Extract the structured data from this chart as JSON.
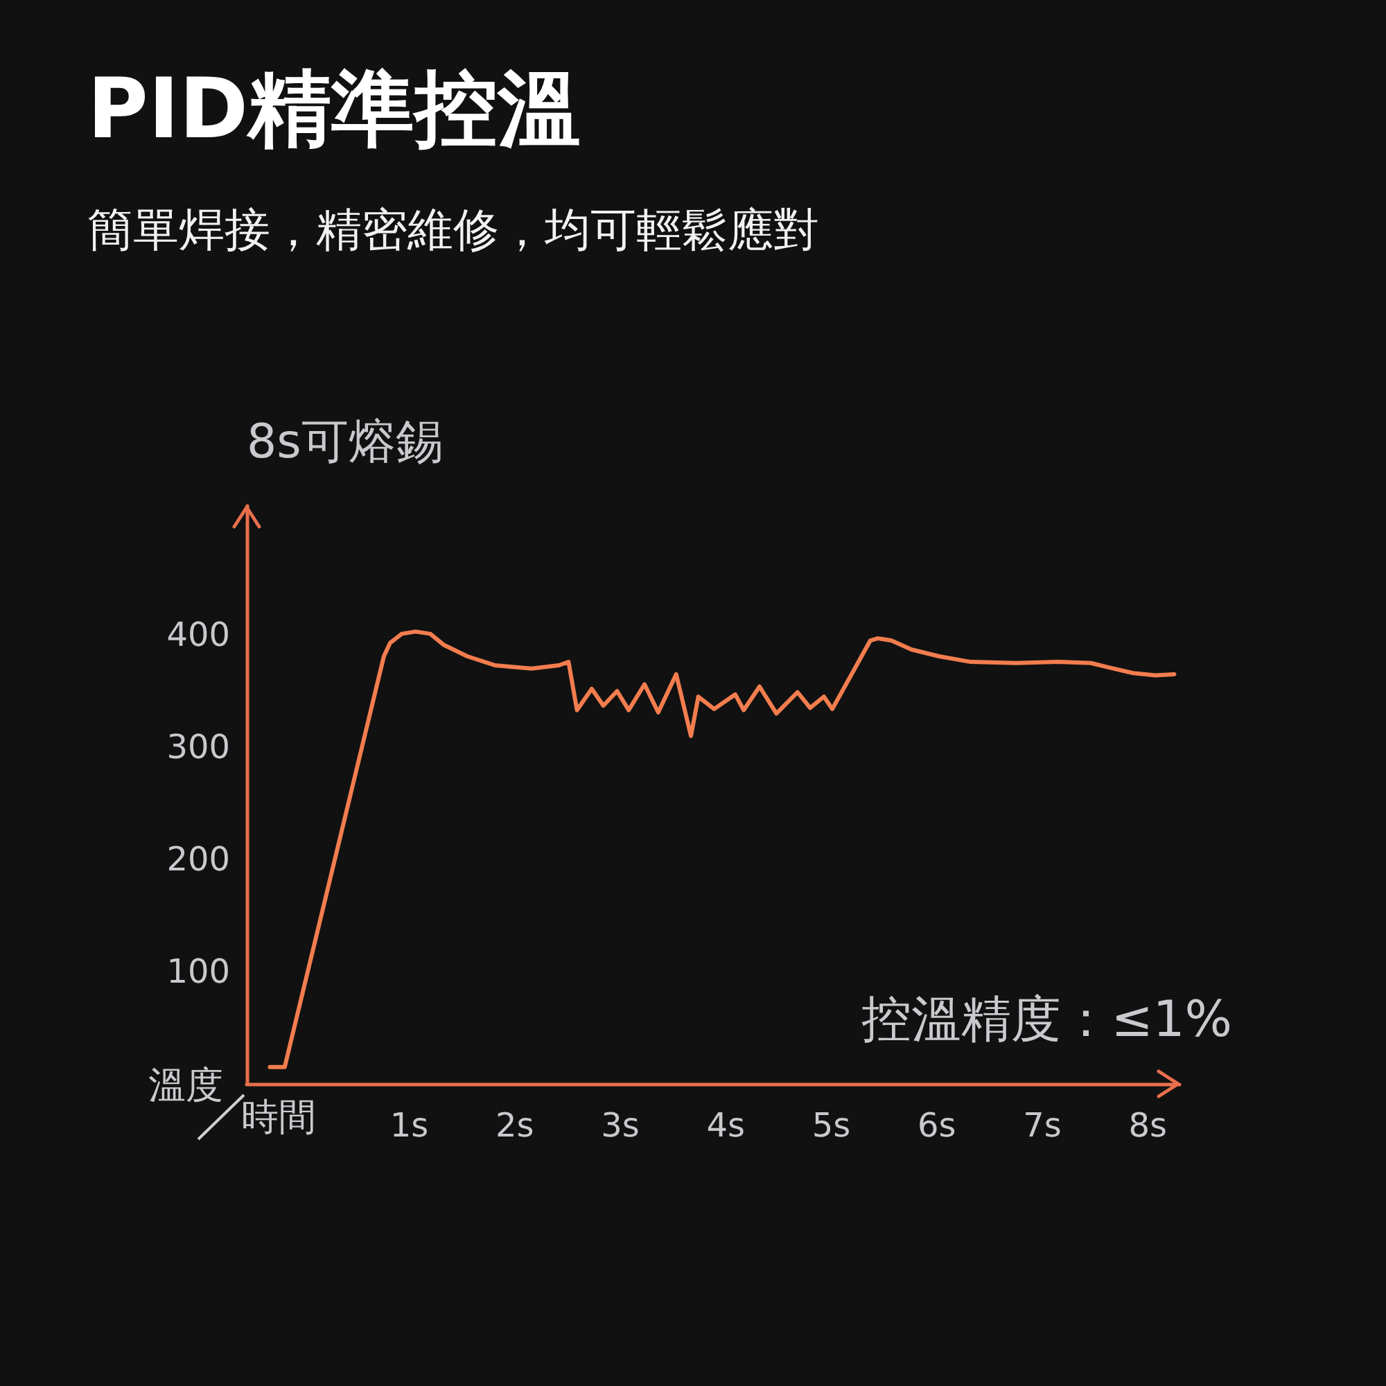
{
  "chart_data": {
    "type": "line",
    "title": "PID精準控溫",
    "subtitle": "簡單焊接，精密維修，均可輕鬆應對",
    "xlabel": "時間",
    "ylabel": "溫度",
    "annotations": [
      "8s可熔錫",
      "控溫精度：≤1%"
    ],
    "x": [
      -0.32,
      -0.18,
      0.76,
      0.82,
      0.93,
      1.06,
      1.2,
      1.33,
      1.55,
      1.81,
      2.16,
      2.42,
      2.51,
      2.59,
      2.73,
      2.84,
      2.97,
      3.08,
      3.23,
      3.36,
      3.53,
      3.67,
      3.74,
      3.89,
      4.09,
      4.17,
      4.32,
      4.48,
      4.68,
      4.8,
      4.93,
      5.01,
      5.37,
      5.44,
      5.57,
      5.76,
      6.02,
      6.32,
      6.75,
      7.15,
      7.46,
      7.63,
      7.86,
      8.07,
      8.25
    ],
    "series": [
      {
        "color": "#f27d4e",
        "values": [
          15,
          15,
          381,
          393,
          401,
          403,
          401,
          391,
          381,
          373,
          370,
          373,
          376,
          333,
          352,
          337,
          350,
          333,
          356,
          331,
          365,
          310,
          345,
          334,
          347,
          333,
          354,
          330,
          349,
          335,
          345,
          334,
          395,
          397,
          395,
          387,
          381,
          376,
          375,
          376,
          375,
          371,
          366,
          364,
          365
        ]
      }
    ],
    "xlim": [
      -0.54,
      8.3
    ],
    "xticks": [
      {
        "value": 1,
        "label": "1s"
      },
      {
        "value": 2,
        "label": "2s"
      },
      {
        "value": 3,
        "label": "3s"
      },
      {
        "value": 4,
        "label": "4s"
      },
      {
        "value": 5,
        "label": "5s"
      },
      {
        "value": 6,
        "label": "6s"
      },
      {
        "value": 7,
        "label": "7s"
      },
      {
        "value": 8,
        "label": "8s"
      }
    ],
    "ylim": [
      0,
      515
    ],
    "yticks": [
      100,
      200,
      300,
      400
    ],
    "marker": "none",
    "grid": false
  }
}
